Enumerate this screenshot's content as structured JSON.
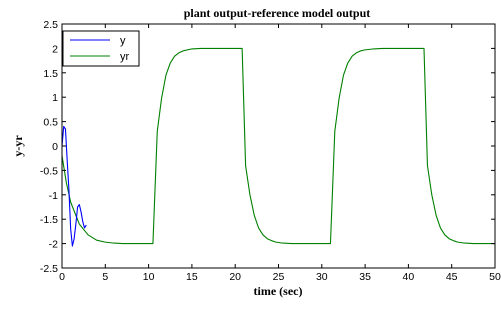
{
  "chart_data": {
    "type": "line",
    "title": "plant output-reference model output",
    "xlabel": "time (sec)",
    "ylabel": "y-yr",
    "xlim": [
      0,
      50
    ],
    "ylim": [
      -2.5,
      2.5
    ],
    "xticks": [
      "0",
      "5",
      "10",
      "15",
      "20",
      "25",
      "30",
      "35",
      "40",
      "45",
      "50"
    ],
    "yticks": [
      "2.5",
      "2",
      "1.5",
      "1",
      "0.5",
      "0",
      "-0.5",
      "-1",
      "-1.5",
      "-2",
      "-2.5"
    ],
    "grid": false,
    "legend_position": "top-left",
    "series": [
      {
        "name": "y",
        "color": "#0000ff",
        "x": [
          0.0,
          0.2,
          0.4,
          0.6,
          0.8,
          1.0,
          1.2,
          1.4,
          1.6,
          1.8,
          2.0,
          2.2,
          2.4,
          2.6,
          2.8
        ],
        "y": [
          0.0,
          0.4,
          0.35,
          -0.3,
          -0.9,
          -1.7,
          -2.05,
          -1.9,
          -1.6,
          -1.25,
          -1.2,
          -1.35,
          -1.55,
          -1.68,
          -1.62
        ]
      },
      {
        "name": "yr",
        "color": "#008000",
        "x": [
          0,
          0.5,
          1,
          2,
          3,
          4,
          5,
          6,
          7,
          8,
          9,
          10,
          10.5,
          11,
          11.5,
          12,
          12.5,
          13,
          13.5,
          14,
          15,
          16,
          17,
          18,
          19,
          20,
          20.8,
          21.2,
          21.7,
          22.2,
          22.7,
          23.2,
          23.7,
          24.2,
          24.7,
          25.5,
          26.5,
          27.5,
          28.5,
          29.5,
          30.5,
          31,
          31.5,
          32,
          32.5,
          33,
          33.5,
          34,
          34.5,
          35,
          36,
          37,
          38,
          39,
          40,
          41,
          41.8,
          42.2,
          42.7,
          43.2,
          43.7,
          44.2,
          44.7,
          45.2,
          45.7,
          46.5,
          47.5,
          48.5,
          49.5,
          50
        ],
        "y": [
          -0.2,
          -0.75,
          -1.15,
          -1.6,
          -1.82,
          -1.93,
          -1.97,
          -1.99,
          -2.0,
          -2.0,
          -2.0,
          -2.0,
          -2.0,
          0.3,
          0.98,
          1.45,
          1.7,
          1.84,
          1.91,
          1.95,
          1.99,
          2.0,
          2.0,
          2.0,
          2.0,
          2.0,
          2.0,
          -0.4,
          -1.0,
          -1.42,
          -1.68,
          -1.82,
          -1.9,
          -1.94,
          -1.97,
          -1.99,
          -2.0,
          -2.0,
          -2.0,
          -2.0,
          -2.0,
          -2.0,
          0.3,
          0.98,
          1.45,
          1.7,
          1.84,
          1.91,
          1.95,
          1.97,
          1.99,
          2.0,
          2.0,
          2.0,
          2.0,
          2.0,
          2.0,
          -0.4,
          -1.0,
          -1.42,
          -1.68,
          -1.82,
          -1.9,
          -1.94,
          -1.97,
          -1.99,
          -2.0,
          -2.0,
          -2.0,
          -2.0
        ]
      }
    ]
  }
}
